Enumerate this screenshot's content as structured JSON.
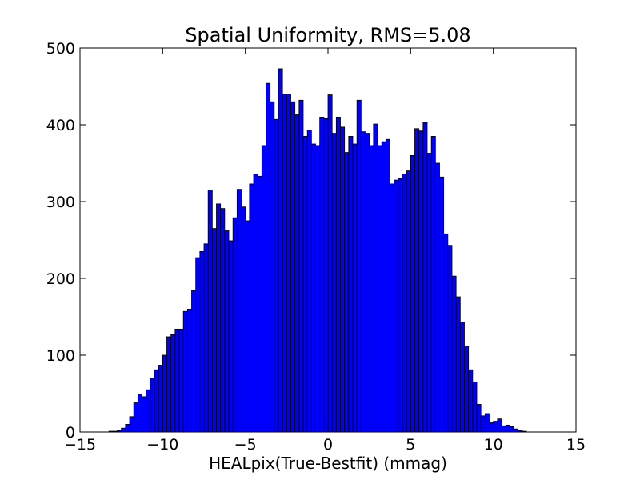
{
  "chart_data": {
    "type": "bar",
    "title": "Spatial Uniformity, RMS=5.08",
    "xlabel": "HEALpix(True-Bestfit) (mmag)",
    "ylabel": "",
    "xlim": [
      -15,
      15
    ],
    "ylim": [
      0,
      500
    ],
    "xticks": [
      -15,
      -10,
      -5,
      0,
      5,
      10,
      15
    ],
    "xtick_labels": [
      "−15",
      "−10",
      "−5",
      "0",
      "5",
      "10",
      "15"
    ],
    "yticks": [
      0,
      100,
      200,
      300,
      400,
      500
    ],
    "ytick_labels": [
      "0",
      "100",
      "200",
      "300",
      "400",
      "500"
    ],
    "grid": false,
    "bar_color": "#0000ff",
    "edge_color": "#000000",
    "bin_start": -13.25,
    "bin_width": 0.25,
    "values": [
      1,
      1,
      2,
      5,
      10,
      20,
      38,
      49,
      46,
      55,
      70,
      81,
      87,
      100,
      124,
      127,
      134,
      134,
      157,
      160,
      184,
      227,
      235,
      245,
      315,
      265,
      297,
      291,
      262,
      249,
      279,
      316,
      293,
      275,
      323,
      336,
      333,
      373,
      454,
      430,
      407,
      473,
      440,
      440,
      430,
      413,
      432,
      385,
      393,
      375,
      373,
      410,
      408,
      439,
      389,
      410,
      397,
      364,
      385,
      375,
      432,
      391,
      389,
      373,
      401,
      373,
      378,
      381,
      323,
      328,
      330,
      336,
      340,
      360,
      395,
      392,
      403,
      363,
      385,
      350,
      332,
      258,
      243,
      203,
      176,
      143,
      112,
      81,
      65,
      36,
      21,
      24,
      12,
      14,
      17,
      8,
      9,
      7,
      4,
      2,
      1
    ]
  }
}
